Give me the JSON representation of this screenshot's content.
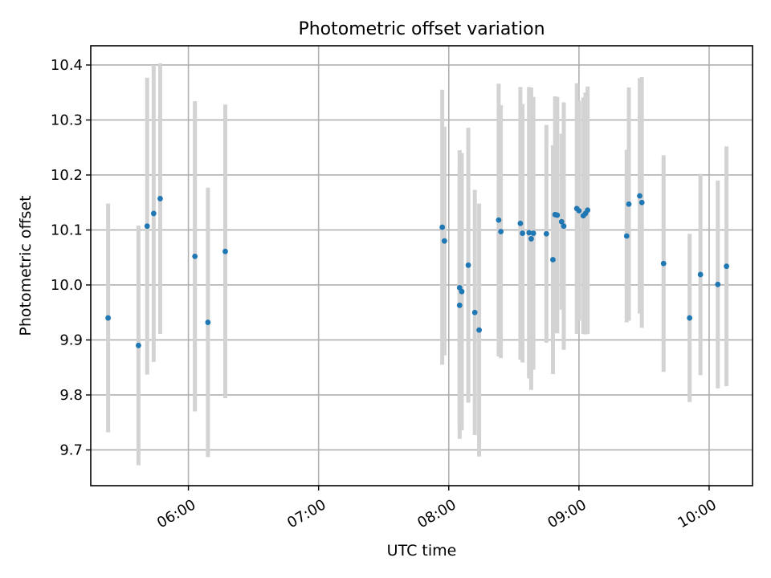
{
  "chart_data": {
    "type": "scatter",
    "title": "Photometric offset variation",
    "xlabel": "UTC time",
    "ylabel": "Photometric offset",
    "grid": true,
    "xlim": [
      "05:15",
      "10:20"
    ],
    "ylim": [
      9.635,
      10.435
    ],
    "x_ticks": [
      "06:00",
      "07:00",
      "08:00",
      "09:00",
      "10:00"
    ],
    "y_ticks": [
      9.7,
      9.8,
      9.9,
      10.0,
      10.1,
      10.2,
      10.3,
      10.4
    ],
    "colors": {
      "marker": "#1f77b4",
      "errorbar": "#d3d3d3",
      "grid": "#b0b0b0"
    },
    "points": [
      {
        "x": "05:23",
        "y": 9.94,
        "yerr": 0.208
      },
      {
        "x": "05:37",
        "y": 9.89,
        "yerr": 0.218
      },
      {
        "x": "05:41",
        "y": 10.107,
        "yerr": 0.27
      },
      {
        "x": "05:44",
        "y": 10.13,
        "yerr": 0.27
      },
      {
        "x": "05:47",
        "y": 10.157,
        "yerr": 0.246
      },
      {
        "x": "06:03",
        "y": 10.052,
        "yerr": 0.282
      },
      {
        "x": "06:09",
        "y": 9.932,
        "yerr": 0.245
      },
      {
        "x": "06:17",
        "y": 10.061,
        "yerr": 0.267
      },
      {
        "x": "07:57",
        "y": 10.105,
        "yerr": 0.25
      },
      {
        "x": "07:58",
        "y": 10.08,
        "yerr": 0.208
      },
      {
        "x": "08:05",
        "y": 9.995,
        "yerr": 0.25
      },
      {
        "x": "08:05",
        "y": 9.963,
        "yerr": 0.243
      },
      {
        "x": "08:06",
        "y": 9.988,
        "yerr": 0.252
      },
      {
        "x": "08:09",
        "y": 10.036,
        "yerr": 0.25
      },
      {
        "x": "08:12",
        "y": 9.95,
        "yerr": 0.223
      },
      {
        "x": "08:14",
        "y": 9.918,
        "yerr": 0.23
      },
      {
        "x": "08:23",
        "y": 10.118,
        "yerr": 0.248
      },
      {
        "x": "08:24",
        "y": 10.097,
        "yerr": 0.23
      },
      {
        "x": "08:33",
        "y": 10.112,
        "yerr": 0.248
      },
      {
        "x": "08:34",
        "y": 10.094,
        "yerr": 0.235
      },
      {
        "x": "08:37",
        "y": 10.095,
        "yerr": 0.265
      },
      {
        "x": "08:38",
        "y": 10.084,
        "yerr": 0.275
      },
      {
        "x": "08:39",
        "y": 10.094,
        "yerr": 0.248
      },
      {
        "x": "08:45",
        "y": 10.093,
        "yerr": 0.198
      },
      {
        "x": "08:48",
        "y": 10.046,
        "yerr": 0.208
      },
      {
        "x": "08:49",
        "y": 10.128,
        "yerr": 0.215
      },
      {
        "x": "08:50",
        "y": 10.127,
        "yerr": 0.215
      },
      {
        "x": "08:52",
        "y": 10.115,
        "yerr": 0.16
      },
      {
        "x": "08:53",
        "y": 10.107,
        "yerr": 0.225
      },
      {
        "x": "08:59",
        "y": 10.139,
        "yerr": 0.228
      },
      {
        "x": "09:00",
        "y": 10.135,
        "yerr": 0.2
      },
      {
        "x": "09:02",
        "y": 10.126,
        "yerr": 0.215
      },
      {
        "x": "09:03",
        "y": 10.13,
        "yerr": 0.22
      },
      {
        "x": "09:04",
        "y": 10.136,
        "yerr": 0.225
      },
      {
        "x": "09:22",
        "y": 10.089,
        "yerr": 0.157
      },
      {
        "x": "09:23",
        "y": 10.147,
        "yerr": 0.212
      },
      {
        "x": "09:28",
        "y": 10.162,
        "yerr": 0.214
      },
      {
        "x": "09:29",
        "y": 10.15,
        "yerr": 0.228
      },
      {
        "x": "09:39",
        "y": 10.039,
        "yerr": 0.197
      },
      {
        "x": "09:51",
        "y": 9.94,
        "yerr": 0.153
      },
      {
        "x": "09:56",
        "y": 10.019,
        "yerr": 0.183
      },
      {
        "x": "10:04",
        "y": 10.001,
        "yerr": 0.189
      },
      {
        "x": "10:08",
        "y": 10.034,
        "yerr": 0.218
      }
    ]
  }
}
